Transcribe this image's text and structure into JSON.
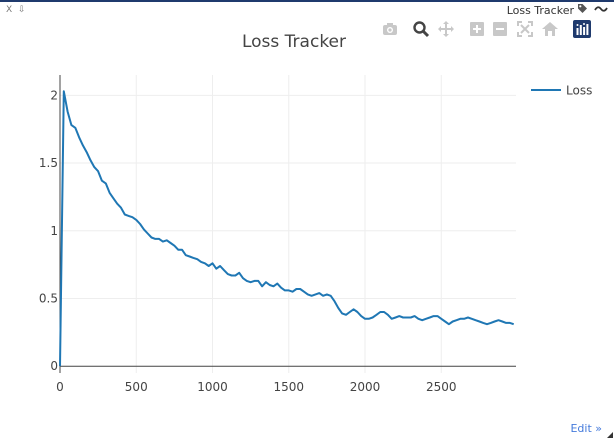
{
  "window": {
    "close_label": "X",
    "pin_label": "⇩",
    "title": "Loss Tracker"
  },
  "toolbar": {
    "buttons": [
      {
        "name": "camera-icon",
        "color": "#c8c8c8"
      },
      {
        "name": "zoom-icon",
        "color": "#444444"
      },
      {
        "name": "pan-icon",
        "color": "#c8c8c8"
      },
      {
        "name": "zoom-in-icon",
        "color": "#c8c8c8"
      },
      {
        "name": "zoom-out-icon",
        "color": "#c8c8c8"
      },
      {
        "name": "autoscale-icon",
        "color": "#c8c8c8"
      },
      {
        "name": "home-icon",
        "color": "#c8c8c8"
      },
      {
        "name": "plotly-logo-icon",
        "color": "#1f3a6d"
      }
    ]
  },
  "edit_label": "Edit »",
  "chart_data": {
    "type": "line",
    "title": "Loss Tracker",
    "xlabel": "",
    "ylabel": "",
    "xlim": [
      0,
      2990
    ],
    "ylim": [
      -0.05,
      2.15
    ],
    "x_ticks": [
      0,
      500,
      1000,
      1500,
      2000,
      2500
    ],
    "x_tick_labels": [
      "0",
      "500",
      "1000",
      "1500",
      "2000",
      "2500"
    ],
    "y_ticks": [
      0,
      0.5,
      1,
      1.5,
      2
    ],
    "y_tick_labels": [
      "0",
      "0.5",
      "1",
      "1.5",
      "2"
    ],
    "grid": true,
    "legend": "top-right",
    "color": "#1f77b4",
    "series": [
      {
        "name": "Loss",
        "x": [
          0,
          25,
          50,
          75,
          100,
          125,
          150,
          175,
          200,
          225,
          250,
          275,
          300,
          325,
          350,
          375,
          400,
          425,
          450,
          475,
          500,
          525,
          550,
          575,
          600,
          625,
          650,
          675,
          700,
          725,
          750,
          775,
          800,
          825,
          850,
          875,
          900,
          925,
          950,
          975,
          1000,
          1025,
          1050,
          1075,
          1100,
          1125,
          1150,
          1175,
          1200,
          1225,
          1250,
          1275,
          1300,
          1325,
          1350,
          1375,
          1400,
          1425,
          1450,
          1475,
          1500,
          1525,
          1550,
          1575,
          1600,
          1625,
          1650,
          1675,
          1700,
          1725,
          1750,
          1775,
          1800,
          1825,
          1850,
          1875,
          1900,
          1925,
          1950,
          1975,
          2000,
          2025,
          2050,
          2075,
          2100,
          2125,
          2150,
          2175,
          2200,
          2225,
          2250,
          2275,
          2300,
          2325,
          2350,
          2375,
          2400,
          2425,
          2450,
          2475,
          2500,
          2525,
          2550,
          2575,
          2600,
          2625,
          2650,
          2675,
          2700,
          2725,
          2750,
          2775,
          2800,
          2825,
          2850,
          2875,
          2900,
          2925,
          2950,
          2975
        ],
        "y": [
          0.0,
          2.03,
          1.88,
          1.78,
          1.76,
          1.69,
          1.63,
          1.58,
          1.52,
          1.47,
          1.44,
          1.37,
          1.35,
          1.28,
          1.24,
          1.2,
          1.17,
          1.12,
          1.11,
          1.1,
          1.08,
          1.05,
          1.01,
          0.98,
          0.95,
          0.94,
          0.94,
          0.92,
          0.93,
          0.91,
          0.89,
          0.86,
          0.86,
          0.82,
          0.81,
          0.8,
          0.79,
          0.77,
          0.76,
          0.74,
          0.76,
          0.72,
          0.74,
          0.71,
          0.68,
          0.67,
          0.67,
          0.69,
          0.65,
          0.63,
          0.62,
          0.63,
          0.63,
          0.59,
          0.62,
          0.6,
          0.59,
          0.61,
          0.58,
          0.56,
          0.56,
          0.55,
          0.57,
          0.57,
          0.55,
          0.53,
          0.52,
          0.53,
          0.54,
          0.52,
          0.53,
          0.52,
          0.48,
          0.43,
          0.39,
          0.38,
          0.4,
          0.42,
          0.4,
          0.37,
          0.35,
          0.35,
          0.36,
          0.38,
          0.4,
          0.4,
          0.38,
          0.35,
          0.36,
          0.37,
          0.36,
          0.36,
          0.36,
          0.37,
          0.35,
          0.34,
          0.35,
          0.36,
          0.37,
          0.37,
          0.35,
          0.33,
          0.31,
          0.33,
          0.34,
          0.35,
          0.35,
          0.36,
          0.35,
          0.34,
          0.33,
          0.32,
          0.31,
          0.32,
          0.33,
          0.34,
          0.33,
          0.32,
          0.32,
          0.31
        ]
      }
    ]
  }
}
